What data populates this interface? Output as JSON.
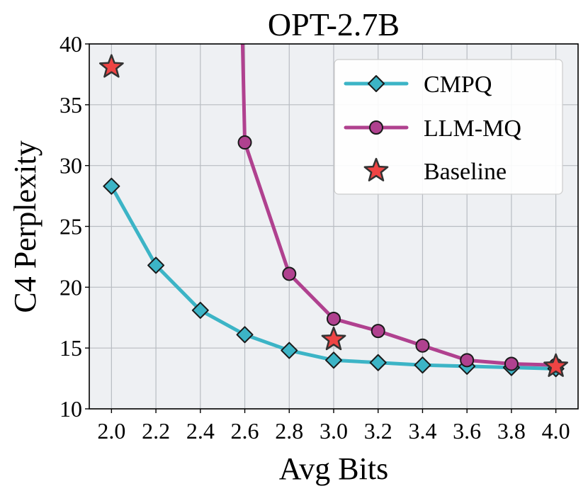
{
  "chart_data": {
    "type": "line",
    "title": "OPT-2.7B",
    "xlabel": "Avg Bits",
    "ylabel": "C4 Perplexity",
    "xlim": [
      1.9,
      4.1
    ],
    "ylim": [
      10,
      40
    ],
    "x_ticks": [
      "2.0",
      "2.2",
      "2.4",
      "2.6",
      "2.8",
      "3.0",
      "3.2",
      "3.4",
      "3.6",
      "3.8",
      "4.0"
    ],
    "y_ticks": [
      "10",
      "15",
      "20",
      "25",
      "30",
      "35",
      "40"
    ],
    "grid": true,
    "legend_position": "top-right",
    "series": [
      {
        "name": "CMPQ",
        "color": "#3cb4c6",
        "marker": "diamond",
        "x": [
          2.0,
          2.2,
          2.4,
          2.6,
          2.8,
          3.0,
          3.2,
          3.4,
          3.6,
          3.8,
          4.0
        ],
        "y": [
          28.3,
          21.8,
          18.1,
          16.1,
          14.8,
          14.0,
          13.8,
          13.6,
          13.5,
          13.4,
          13.3
        ]
      },
      {
        "name": "LLM-MQ",
        "color": "#b0418f",
        "marker": "circle",
        "x": [
          2.6,
          2.8,
          3.0,
          3.2,
          3.4,
          3.6,
          3.8,
          4.0
        ],
        "y": [
          31.9,
          21.1,
          17.4,
          16.4,
          15.2,
          14.0,
          13.7,
          13.6
        ],
        "line_start": {
          "x": 2.59,
          "y": 40
        }
      },
      {
        "name": "Baseline",
        "color": "#ef4444",
        "marker": "star",
        "x": [
          2.0,
          3.0,
          4.0
        ],
        "y": [
          38.1,
          15.7,
          13.5
        ]
      }
    ]
  }
}
